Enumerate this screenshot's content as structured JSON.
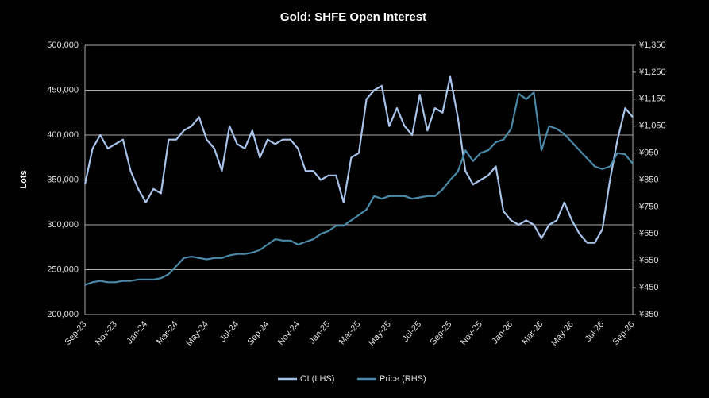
{
  "chart_data": {
    "type": "line",
    "title": "Gold: SHFE Open Interest",
    "y_label": "Lots",
    "categories": [
      "Sep-23",
      null,
      null,
      null,
      "Nov-23",
      null,
      null,
      null,
      "Jan-24",
      null,
      null,
      null,
      "Mar-24",
      null,
      null,
      null,
      "May-24",
      null,
      null,
      null,
      "Jul-24",
      null,
      null,
      null,
      "Sep-24",
      null,
      null,
      null,
      "Nov-24",
      null,
      null,
      null,
      "Jan-25",
      null,
      null,
      null,
      "Mar-25",
      null,
      null,
      null,
      "May-25",
      null,
      null,
      null,
      "Jul-25",
      null,
      null,
      null,
      "Sep-25",
      null,
      null,
      null,
      "Nov-25",
      null,
      null,
      null,
      "Jan-26",
      null,
      null,
      null,
      "Mar-26",
      null,
      null,
      null,
      "May-26",
      null,
      null,
      null,
      "Jul-26",
      null,
      null,
      null,
      "Sep-26"
    ],
    "series": [
      {
        "name": "OI (LHS)",
        "color": "#a9c4eb",
        "axis": "y",
        "values": [
          345000,
          385000,
          400000,
          385000,
          390000,
          395000,
          360000,
          340000,
          325000,
          340000,
          335000,
          395000,
          395000,
          405000,
          410000,
          420000,
          395000,
          385000,
          360000,
          410000,
          390000,
          385000,
          405000,
          375000,
          395000,
          390000,
          395000,
          395000,
          385000,
          360000,
          360000,
          350000,
          355000,
          355000,
          325000,
          375000,
          380000,
          440000,
          450000,
          455000,
          410000,
          430000,
          410000,
          400000,
          445000,
          405000,
          430000,
          425000,
          465000,
          420000,
          360000,
          345000,
          350000,
          355000,
          365000,
          315000,
          305000,
          300000,
          305000,
          300000,
          285000,
          300000,
          305000,
          325000,
          305000,
          290000,
          280000,
          280000,
          295000,
          350000,
          395000,
          430000,
          420000
        ]
      },
      {
        "name": "Price (RHS)",
        "color": "#4a8aa8",
        "axis": "y2",
        "values": [
          460,
          470,
          475,
          470,
          470,
          475,
          475,
          480,
          480,
          480,
          485,
          500,
          530,
          560,
          565,
          560,
          555,
          560,
          560,
          570,
          575,
          575,
          580,
          590,
          610,
          630,
          625,
          625,
          610,
          620,
          630,
          650,
          660,
          680,
          680,
          700,
          720,
          740,
          790,
          780,
          790,
          790,
          790,
          780,
          785,
          790,
          790,
          815,
          850,
          880,
          960,
          920,
          950,
          960,
          990,
          1000,
          1040,
          1170,
          1150,
          1175,
          960,
          1050,
          1040,
          1020,
          990,
          960,
          930,
          900,
          890,
          900,
          950,
          945,
          910
        ]
      }
    ],
    "ylim": [
      200000,
      500000
    ],
    "yticks": [
      {
        "value": 200000,
        "label": "200,000"
      },
      {
        "value": 250000,
        "label": "250,000"
      },
      {
        "value": 300000,
        "label": "300,000"
      },
      {
        "value": 350000,
        "label": "350,000"
      },
      {
        "value": 400000,
        "label": "400,000"
      },
      {
        "value": 450000,
        "label": "450,000"
      },
      {
        "value": 500000,
        "label": "500,000"
      }
    ],
    "y2lim": [
      350,
      1350
    ],
    "y2ticks": [
      {
        "value": 350,
        "label": "¥350"
      },
      {
        "value": 450,
        "label": "¥450"
      },
      {
        "value": 550,
        "label": "¥550"
      },
      {
        "value": 650,
        "label": "¥650"
      },
      {
        "value": 750,
        "label": "¥750"
      },
      {
        "value": 850,
        "label": "¥850"
      },
      {
        "value": 950,
        "label": "¥950"
      },
      {
        "value": 1050,
        "label": "¥1,050"
      },
      {
        "value": 1150,
        "label": "¥1,150"
      },
      {
        "value": 1250,
        "label": "¥1,250"
      },
      {
        "value": 1350,
        "label": "¥1,350"
      }
    ],
    "grid": true,
    "legend": "bottom"
  }
}
